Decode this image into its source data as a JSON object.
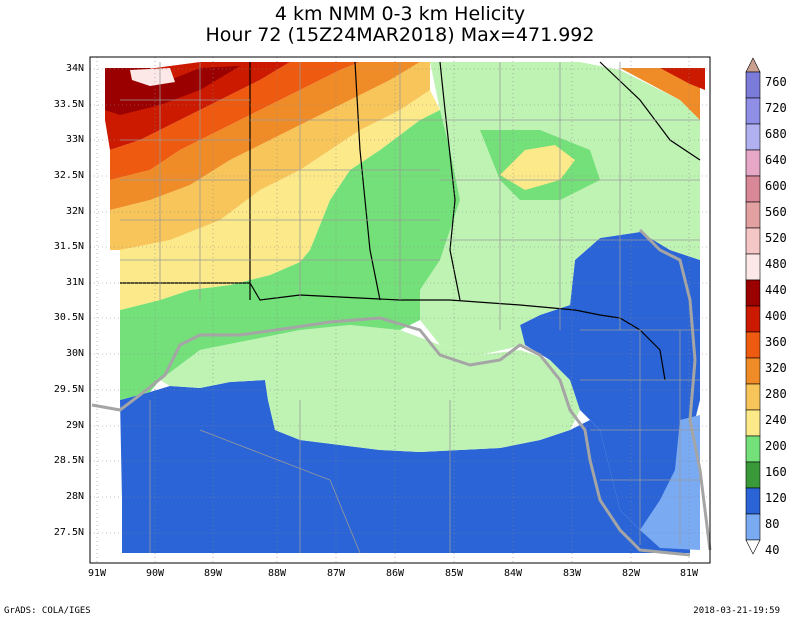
{
  "title": {
    "line1": "4 km NMM 0-3 km Helicity",
    "line2": "Hour 72 (15Z24MAR2018) Max=471.992"
  },
  "lat_labels": [
    "34N",
    "33.5N",
    "33N",
    "32.5N",
    "32N",
    "31.5N",
    "31N",
    "30.5N",
    "30N",
    "29.5N",
    "29N",
    "28.5N",
    "28N",
    "27.5N"
  ],
  "lon_labels": [
    "91W",
    "90W",
    "89W",
    "88W",
    "87W",
    "86W",
    "85W",
    "84W",
    "83W",
    "82W",
    "81W"
  ],
  "colorbar": {
    "labels": [
      "760",
      "720",
      "680",
      "640",
      "600",
      "560",
      "520",
      "480",
      "440",
      "400",
      "360",
      "320",
      "280",
      "240",
      "200",
      "160",
      "120",
      "80",
      "40"
    ],
    "colors": [
      "#7b7bd9",
      "#8f8fe8",
      "#b1b1f2",
      "#e7a8c8",
      "#d98898",
      "#e2a0a0",
      "#f4c6c6",
      "#fde8e8",
      "#9b0000",
      "#cc1a00",
      "#ee5a0f",
      "#f08c28",
      "#f7c55a",
      "#fbe98a",
      "#74e07a",
      "#3a9a3a",
      "#2a64d6",
      "#7aaaf2",
      "#ffffff"
    ]
  },
  "map": {
    "regions": [
      "land-high-helicity",
      "land-moderate",
      "land-low",
      "gulf-water"
    ],
    "colors": {
      "dark-red": "#9b0000",
      "red": "#cc1a00",
      "orange": "#ee5a0f",
      "light-orange": "#f08c28",
      "yellow-orange": "#f7c55a",
      "yellow": "#fbe98a",
      "green": "#74e07a",
      "light-green": "#bff3b4",
      "blue": "#2a64d6",
      "light-blue": "#7aaaf2",
      "white": "#ffffff",
      "border-gray": "#a5a5a5"
    }
  },
  "footer": {
    "left": "GrADS: COLA/IGES",
    "right": "2018-03-21-19:59"
  }
}
